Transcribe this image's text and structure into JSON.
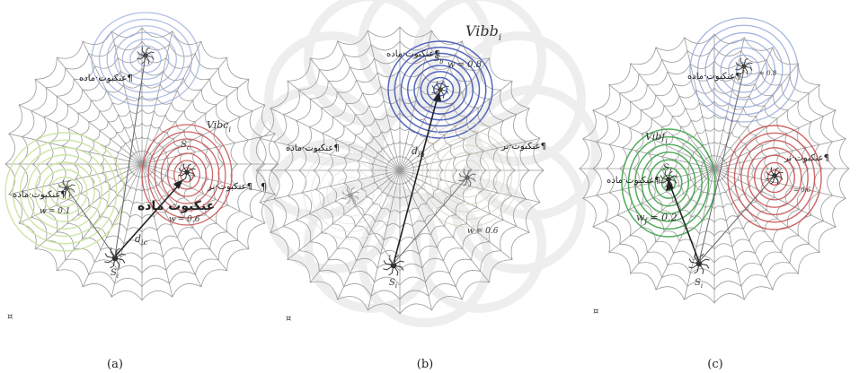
{
  "captions": [
    "(a)",
    "(b)",
    "(c)"
  ],
  "paragraph_mark": "¤",
  "colors": {
    "web": "#9a9a9a",
    "blue": "#4a5fb8",
    "blue_faint": "#8fa4d8",
    "red": "#c84a4a",
    "green": "#3fa34a",
    "green_faint": "#c7e39a",
    "watermark": "#eeeeee"
  },
  "panel_a": {
    "female_top": "عنکبوت·ماده¶",
    "female_left": "عنکبوت·ماده¶",
    "male": "عنکبوت·نر¶",
    "target": "عنکبوت ماده",
    "pilcrow": "¶",
    "vib": "Vibc",
    "vib_sub": "i",
    "w_left": "w",
    "w_left_val": "= 0.1",
    "w_right": "w",
    "w_right_val": "= 0.6",
    "d": "d",
    "d_sub": "ic",
    "s_label": "S",
    "s_sub": "i",
    "s_top": "S",
    "s_top_sub": "c"
  },
  "panel_b": {
    "female_top": "عنکبوت·ماده¶",
    "female_left": "عنکبوت·ماده¶",
    "male": "عنکبوت·نر¶",
    "vib": "Vibb",
    "vib_sub": "i",
    "w_top": "w",
    "w_top_val": "= 0.8",
    "w_right": "w",
    "w_right_val": "= 0.6",
    "d": "d",
    "d_sub": "ib",
    "s_label": "S",
    "s_sub": "i",
    "s_top": "S",
    "s_top_sub": "b"
  },
  "panel_c": {
    "female_top": "عنکبوت·ماده¶",
    "male": "عنکبوت·نر¶",
    "female_left": "عنکبوت·ماده¶",
    "vib": "Vibf",
    "vib_sub": "i",
    "w_top_val": "= 0.8",
    "w_right_val": "= 0.6",
    "w_left": "w",
    "w_left_val": "= 0.2",
    "s_label": "S",
    "s_sub": "i",
    "s_f": "S",
    "s_f_sub": "f"
  }
}
